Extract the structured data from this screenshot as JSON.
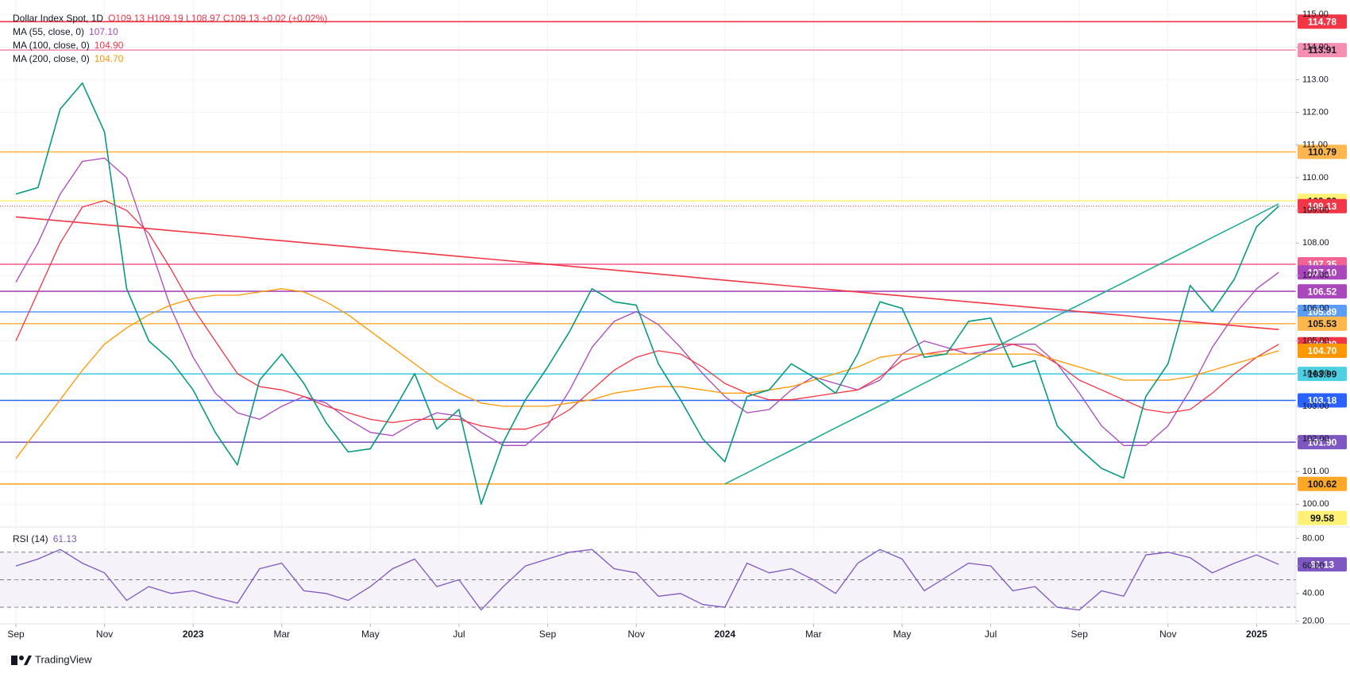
{
  "chart_data": [
    {
      "type": "line",
      "title": "Dollar Index Spot, 1D",
      "quote": "O109.13  H109.19  L108.97  C109.13  +0.02 (+0.02%)",
      "categories": [
        "Sep",
        null,
        null,
        null,
        "Nov",
        null,
        null,
        null,
        "2023",
        null,
        null,
        null,
        "Mar",
        null,
        null,
        null,
        "May",
        null,
        null,
        null,
        "Jul",
        null,
        null,
        null,
        "Sep",
        null,
        null,
        null,
        "Nov",
        null,
        null,
        null,
        "2024",
        null,
        null,
        null,
        "Mar",
        null,
        null,
        null,
        "May",
        null,
        null,
        null,
        "Jul",
        null,
        null,
        null,
        "Sep",
        null,
        null,
        null,
        "Nov",
        null,
        null,
        null,
        "2025",
        null
      ],
      "ylim": [
        99.4,
        115.2
      ],
      "yticks": [
        {
          "value": 100,
          "label": "100.00"
        },
        {
          "value": 101,
          "label": "101.00"
        },
        {
          "value": 102,
          "label": "102.00"
        },
        {
          "value": 103,
          "label": "103.00"
        },
        {
          "value": 104,
          "label": "104.00"
        },
        {
          "value": 105,
          "label": "105.00"
        },
        {
          "value": 106,
          "label": "106.00"
        },
        {
          "value": 107,
          "label": "107.00"
        },
        {
          "value": 108,
          "label": "108.00"
        },
        {
          "value": 109,
          "label": "109.00"
        },
        {
          "value": 110,
          "label": "110.00"
        },
        {
          "value": 111,
          "label": "111.00"
        },
        {
          "value": 112,
          "label": "112.00"
        },
        {
          "value": 113,
          "label": "113.00"
        },
        {
          "value": 114,
          "label": "114.00"
        },
        {
          "value": 115,
          "label": "115.00"
        }
      ],
      "grid": true,
      "levels": [
        {
          "value": 114.78,
          "label": "114.78",
          "color": "#f23645",
          "line": "solid"
        },
        {
          "value": 113.91,
          "label": "113.91",
          "color": "#f48fb1",
          "line": "solid"
        },
        {
          "value": 110.79,
          "label": "110.79",
          "color": "#ffb74d",
          "line": "solid"
        },
        {
          "value": 109.29,
          "label": "109.29",
          "color": "#fff176",
          "line": "solid"
        },
        {
          "value": 109.13,
          "label": "109.13",
          "color": "#f23645",
          "line": "dotted"
        },
        {
          "value": 107.35,
          "label": "107.35",
          "color": "#f06292",
          "line": "solid"
        },
        {
          "value": 106.52,
          "label": "106.52",
          "color": "#ab47bc",
          "line": "solid"
        },
        {
          "value": 105.89,
          "label": "105.89",
          "color": "#5b9cf6",
          "line": "solid"
        },
        {
          "value": 105.53,
          "label": "105.53",
          "color": "#ffb74d",
          "line": "solid"
        },
        {
          "value": 103.99,
          "label": "103.99",
          "color": "#4dd0e1",
          "line": "solid"
        },
        {
          "value": 103.18,
          "label": "103.18",
          "color": "#2962ff",
          "line": "solid"
        },
        {
          "value": 101.9,
          "label": "101.90",
          "color": "#7e57c2",
          "line": "solid"
        },
        {
          "value": 100.62,
          "label": "100.62",
          "color": "#ffa726",
          "line": "solid"
        },
        {
          "value": 99.58,
          "label": "99.58",
          "color": "#fff176",
          "line": "none"
        }
      ],
      "series": [
        {
          "color": "#f23645",
          "values": [
            108.8,
            108.74,
            108.68,
            108.62,
            108.56,
            108.5,
            108.44,
            108.38,
            108.32,
            108.26,
            108.2,
            108.13,
            108.07,
            108.01,
            107.95,
            107.89,
            107.83,
            107.77,
            107.71,
            107.65,
            107.59,
            107.53,
            107.47,
            107.41,
            107.35,
            107.29,
            107.23,
            107.17,
            107.11,
            107.05,
            106.99,
            106.92,
            106.86,
            106.8,
            106.74,
            106.68,
            106.62,
            106.56,
            106.5,
            106.44,
            106.38,
            106.32,
            106.26,
            106.2,
            106.14,
            106.08,
            106.02,
            105.96,
            105.9,
            105.84,
            105.78,
            105.71,
            105.65,
            105.59,
            105.53,
            105.47,
            105.41,
            105.35
          ]
        },
        {
          "color": "#22ab94",
          "values": [
            null,
            null,
            null,
            null,
            null,
            null,
            null,
            null,
            null,
            null,
            null,
            null,
            null,
            null,
            null,
            null,
            null,
            null,
            null,
            null,
            null,
            null,
            null,
            null,
            null,
            null,
            null,
            null,
            null,
            null,
            null,
            null,
            100.62,
            100.96,
            101.31,
            101.65,
            101.99,
            102.34,
            102.68,
            103.02,
            103.36,
            103.71,
            104.05,
            104.39,
            104.74,
            105.08,
            105.42,
            105.77,
            106.11,
            106.45,
            106.79,
            107.14,
            107.48,
            107.82,
            108.17,
            108.51,
            108.85,
            109.2
          ]
        },
        {
          "name": "MA (55, close, 0)",
          "value_label": "107.10",
          "color": "#ab47bc",
          "values": [
            106.8,
            108.0,
            109.5,
            110.5,
            110.6,
            110.0,
            108.0,
            106.0,
            104.5,
            103.4,
            102.8,
            102.6,
            103.0,
            103.3,
            103.1,
            102.6,
            102.2,
            102.1,
            102.5,
            102.8,
            102.7,
            102.2,
            101.8,
            101.8,
            102.4,
            103.5,
            104.8,
            105.6,
            105.9,
            105.5,
            104.8,
            104.0,
            103.3,
            102.8,
            102.9,
            103.5,
            103.9,
            103.7,
            103.5,
            103.8,
            104.6,
            105.0,
            104.8,
            104.6,
            104.7,
            104.9,
            104.9,
            104.3,
            103.4,
            102.4,
            101.8,
            101.8,
            102.4,
            103.5,
            104.8,
            105.8,
            106.6,
            107.1
          ]
        },
        {
          "name": "MA (100, close, 0)",
          "value_label": "104.90",
          "color": "#f23645",
          "values": [
            105.0,
            106.5,
            108.0,
            109.1,
            109.3,
            109.0,
            108.3,
            107.2,
            106.0,
            105.0,
            104.0,
            103.6,
            103.5,
            103.3,
            103.0,
            102.8,
            102.6,
            102.5,
            102.6,
            102.6,
            102.6,
            102.4,
            102.3,
            102.3,
            102.5,
            102.9,
            103.5,
            104.1,
            104.5,
            104.7,
            104.6,
            104.2,
            103.7,
            103.4,
            103.2,
            103.2,
            103.3,
            103.4,
            103.5,
            103.9,
            104.4,
            104.6,
            104.7,
            104.8,
            104.9,
            104.9,
            104.7,
            104.3,
            103.8,
            103.5,
            103.2,
            102.9,
            102.8,
            102.9,
            103.4,
            104.0,
            104.5,
            104.9
          ]
        },
        {
          "name": "MA (200, close, 0)",
          "value_label": "104.70",
          "color": "#ff9800",
          "values": [
            101.4,
            102.3,
            103.2,
            104.1,
            104.9,
            105.4,
            105.8,
            106.1,
            106.3,
            106.4,
            106.4,
            106.5,
            106.6,
            106.5,
            106.2,
            105.8,
            105.3,
            104.8,
            104.3,
            103.8,
            103.4,
            103.1,
            103.0,
            103.0,
            103.0,
            103.1,
            103.2,
            103.4,
            103.5,
            103.6,
            103.6,
            103.5,
            103.4,
            103.4,
            103.5,
            103.6,
            103.8,
            104.0,
            104.2,
            104.5,
            104.6,
            104.6,
            104.6,
            104.6,
            104.6,
            104.6,
            104.6,
            104.4,
            104.2,
            104.0,
            103.8,
            103.8,
            103.8,
            103.9,
            104.1,
            104.3,
            104.5,
            104.7
          ]
        },
        {
          "color": "#089981",
          "values": [
            109.5,
            109.7,
            112.1,
            112.9,
            111.4,
            106.6,
            105.0,
            104.4,
            103.5,
            102.2,
            101.2,
            103.8,
            104.6,
            103.7,
            102.5,
            101.6,
            101.7,
            102.8,
            104.0,
            102.3,
            102.9,
            100.0,
            101.9,
            103.2,
            104.2,
            105.3,
            106.6,
            106.2,
            106.1,
            104.3,
            103.2,
            102.0,
            101.3,
            103.3,
            103.5,
            104.3,
            103.9,
            103.4,
            104.6,
            106.2,
            106.0,
            104.5,
            104.6,
            105.6,
            105.7,
            104.2,
            104.4,
            102.4,
            101.7,
            101.1,
            100.8,
            103.3,
            104.3,
            106.7,
            105.9,
            106.9,
            108.5,
            109.13
          ]
        }
      ]
    },
    {
      "type": "line",
      "ylim": [
        18,
        86
      ],
      "yticks": [
        {
          "value": 20,
          "label": "20.00"
        },
        {
          "value": 40,
          "label": "40.00"
        },
        {
          "value": 60,
          "label": "60.00"
        },
        {
          "value": 80,
          "label": "80.00"
        }
      ],
      "bands": [
        30,
        50,
        70
      ],
      "band_color": "#7e57c2",
      "series": [
        {
          "name": "RSI (14)",
          "value_label": "61.13",
          "color": "#7e57c2",
          "values": [
            60,
            65,
            72,
            62,
            55,
            35,
            45,
            40,
            42,
            37,
            33,
            58,
            62,
            42,
            40,
            35,
            45,
            58,
            65,
            45,
            50,
            28,
            45,
            60,
            65,
            70,
            72,
            58,
            55,
            38,
            40,
            32,
            30,
            62,
            55,
            58,
            50,
            40,
            62,
            72,
            65,
            42,
            52,
            62,
            60,
            42,
            45,
            30,
            28,
            42,
            38,
            68,
            70,
            66,
            55,
            62,
            68,
            61.13
          ]
        }
      ]
    }
  ],
  "logo": "TradingView"
}
